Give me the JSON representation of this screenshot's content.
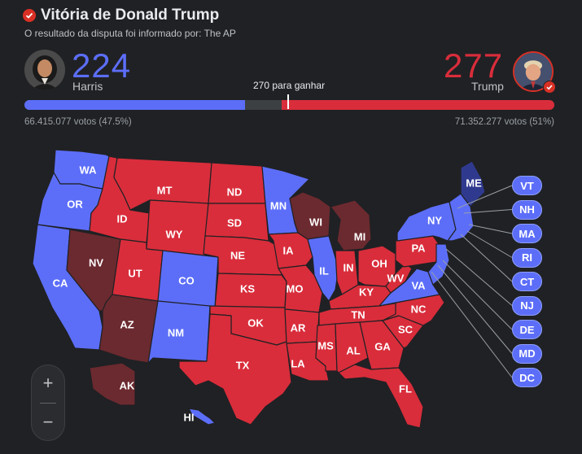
{
  "header": {
    "title": "Vitória de Donald Trump",
    "subtitle": "O resultado da disputa foi informado por: The AP"
  },
  "candidates": {
    "left": {
      "name": "Harris",
      "electoral_votes": "224",
      "popular": "66.415.077 votos (47.5%)",
      "color": "#5c6ef8"
    },
    "right": {
      "name": "Trump",
      "electoral_votes": "277",
      "popular": "71.352.277 votos (51%)",
      "color": "#d92d3b"
    }
  },
  "threshold_label": "270 para ganhar",
  "colors": {
    "dem": "#5c6ef8",
    "rep": "#d92d3b",
    "rep_lean": "#6b2a2f",
    "dem_lean": "#2f3a8f",
    "background": "#202124"
  },
  "chart_data": {
    "type": "choropleth",
    "electoral_total": 538,
    "threshold": 270,
    "dem_votes": 224,
    "rep_votes": 277,
    "states": [
      {
        "abbr": "WA",
        "winner": "dem"
      },
      {
        "abbr": "OR",
        "winner": "dem"
      },
      {
        "abbr": "CA",
        "winner": "dem"
      },
      {
        "abbr": "NV",
        "winner": "rep_lean"
      },
      {
        "abbr": "ID",
        "winner": "rep"
      },
      {
        "abbr": "MT",
        "winner": "rep"
      },
      {
        "abbr": "WY",
        "winner": "rep"
      },
      {
        "abbr": "UT",
        "winner": "rep"
      },
      {
        "abbr": "AZ",
        "winner": "rep_lean"
      },
      {
        "abbr": "CO",
        "winner": "dem"
      },
      {
        "abbr": "NM",
        "winner": "dem"
      },
      {
        "abbr": "ND",
        "winner": "rep"
      },
      {
        "abbr": "SD",
        "winner": "rep"
      },
      {
        "abbr": "NE",
        "winner": "rep"
      },
      {
        "abbr": "KS",
        "winner": "rep"
      },
      {
        "abbr": "OK",
        "winner": "rep"
      },
      {
        "abbr": "TX",
        "winner": "rep"
      },
      {
        "abbr": "MN",
        "winner": "dem"
      },
      {
        "abbr": "IA",
        "winner": "rep"
      },
      {
        "abbr": "MO",
        "winner": "rep"
      },
      {
        "abbr": "AR",
        "winner": "rep"
      },
      {
        "abbr": "LA",
        "winner": "rep"
      },
      {
        "abbr": "WI",
        "winner": "rep_lean"
      },
      {
        "abbr": "IL",
        "winner": "dem"
      },
      {
        "abbr": "MI",
        "winner": "rep_lean"
      },
      {
        "abbr": "IN",
        "winner": "rep"
      },
      {
        "abbr": "OH",
        "winner": "rep"
      },
      {
        "abbr": "KY",
        "winner": "rep"
      },
      {
        "abbr": "TN",
        "winner": "rep"
      },
      {
        "abbr": "MS",
        "winner": "rep"
      },
      {
        "abbr": "AL",
        "winner": "rep"
      },
      {
        "abbr": "GA",
        "winner": "rep"
      },
      {
        "abbr": "FL",
        "winner": "rep"
      },
      {
        "abbr": "SC",
        "winner": "rep"
      },
      {
        "abbr": "NC",
        "winner": "rep"
      },
      {
        "abbr": "VA",
        "winner": "dem"
      },
      {
        "abbr": "WV",
        "winner": "rep"
      },
      {
        "abbr": "PA",
        "winner": "rep"
      },
      {
        "abbr": "NY",
        "winner": "dem"
      },
      {
        "abbr": "ME",
        "winner": "dem_lean"
      },
      {
        "abbr": "AK",
        "winner": "rep_lean"
      },
      {
        "abbr": "HI",
        "winner": "dem"
      }
    ],
    "small_states": [
      {
        "abbr": "VT",
        "winner": "dem"
      },
      {
        "abbr": "NH",
        "winner": "dem"
      },
      {
        "abbr": "MA",
        "winner": "dem"
      },
      {
        "abbr": "RI",
        "winner": "dem"
      },
      {
        "abbr": "CT",
        "winner": "dem"
      },
      {
        "abbr": "NJ",
        "winner": "dem"
      },
      {
        "abbr": "DE",
        "winner": "dem"
      },
      {
        "abbr": "MD",
        "winner": "dem"
      },
      {
        "abbr": "DC",
        "winner": "dem"
      }
    ]
  },
  "zoom": {
    "in_icon": "plus-icon",
    "in_label": "+",
    "out_icon": "minus-icon",
    "out_label": "−"
  }
}
